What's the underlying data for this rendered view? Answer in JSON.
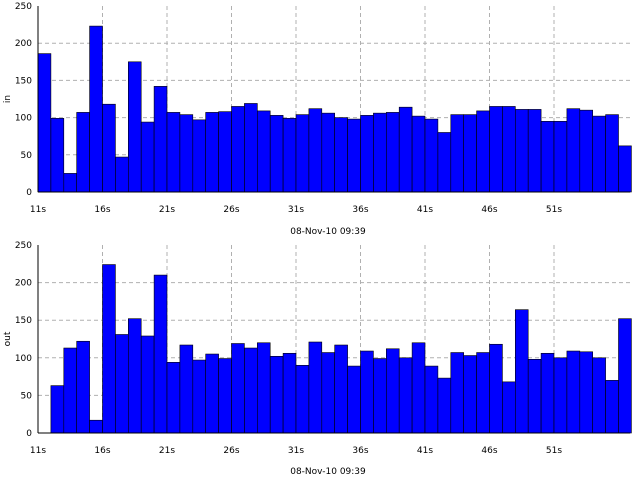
{
  "chart_data": [
    {
      "type": "bar",
      "ylabel": "in",
      "xlabel": "08-Nov-10 09:39",
      "ylim": [
        0,
        250
      ],
      "yticks": [
        0,
        50,
        100,
        150,
        200,
        250
      ],
      "xticks": [
        "11s",
        "16s",
        "21s",
        "26s",
        "31s",
        "36s",
        "41s",
        "46s",
        "51s"
      ],
      "grid": true,
      "bar_color": "#0000ff",
      "values": [
        186,
        99,
        25,
        107,
        223,
        118,
        47,
        175,
        94,
        142,
        107,
        104,
        97,
        107,
        108,
        115,
        119,
        109,
        103,
        99,
        104,
        112,
        106,
        100,
        98,
        103,
        106,
        107,
        114,
        102,
        98,
        80,
        104,
        104,
        109,
        115,
        115,
        111,
        111,
        95,
        95,
        112,
        110,
        102,
        104,
        62
      ]
    },
    {
      "type": "bar",
      "ylabel": "out",
      "xlabel": "08-Nov-10 09:39",
      "ylim": [
        0,
        250
      ],
      "yticks": [
        0,
        50,
        100,
        150,
        200,
        250
      ],
      "xticks": [
        "11s",
        "16s",
        "21s",
        "26s",
        "31s",
        "36s",
        "41s",
        "46s",
        "51s"
      ],
      "grid": true,
      "bar_color": "#0000ff",
      "values": [
        0,
        63,
        113,
        122,
        17,
        224,
        131,
        152,
        129,
        210,
        94,
        117,
        97,
        105,
        99,
        119,
        113,
        120,
        102,
        106,
        90,
        121,
        107,
        117,
        89,
        109,
        99,
        112,
        100,
        120,
        89,
        73,
        107,
        103,
        107,
        118,
        68,
        164,
        98,
        106,
        100,
        109,
        108,
        100,
        70,
        152
      ]
    }
  ]
}
